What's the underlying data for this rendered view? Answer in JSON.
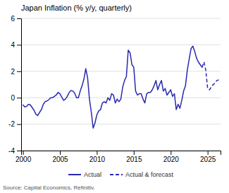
{
  "chart_data": {
    "type": "line",
    "title": "Japan Inflation (% y/y, quarterly)",
    "source": "Source: Capital Economics, Refinitiv.",
    "xlim": [
      1999.75,
      2026.75
    ],
    "xticks": [
      2000,
      2005,
      2010,
      2015,
      2020,
      2025
    ],
    "ylim": [
      -4,
      6
    ],
    "yticks": [
      -4,
      -2,
      0,
      2,
      4,
      6
    ],
    "grid": true,
    "legend": "bottom",
    "series": [
      {
        "name": "Actual",
        "color": "#2929b0",
        "line_style": "solid",
        "x": [
          2000.0,
          2000.25,
          2000.5,
          2000.75,
          2001.0,
          2001.25,
          2001.5,
          2001.75,
          2002.0,
          2002.25,
          2002.5,
          2002.75,
          2003.0,
          2003.25,
          2003.5,
          2003.75,
          2004.0,
          2004.25,
          2004.5,
          2004.75,
          2005.0,
          2005.25,
          2005.5,
          2005.75,
          2006.0,
          2006.25,
          2006.5,
          2006.75,
          2007.0,
          2007.25,
          2007.5,
          2007.75,
          2008.0,
          2008.25,
          2008.5,
          2008.75,
          2009.0,
          2009.25,
          2009.5,
          2009.75,
          2010.0,
          2010.25,
          2010.5,
          2010.75,
          2011.0,
          2011.25,
          2011.5,
          2011.75,
          2012.0,
          2012.25,
          2012.5,
          2012.75,
          2013.0,
          2013.25,
          2013.5,
          2013.75,
          2014.0,
          2014.25,
          2014.5,
          2014.75,
          2015.0,
          2015.25,
          2015.5,
          2015.75,
          2016.0,
          2016.25,
          2016.5,
          2016.75,
          2017.0,
          2017.25,
          2017.5,
          2017.75,
          2018.0,
          2018.25,
          2018.5,
          2018.75,
          2019.0,
          2019.25,
          2019.5,
          2019.75,
          2020.0,
          2020.25,
          2020.5,
          2020.75,
          2021.0,
          2021.25,
          2021.5,
          2021.75,
          2022.0,
          2022.25,
          2022.5,
          2022.75,
          2023.0,
          2023.25,
          2023.5,
          2023.75,
          2024.0,
          2024.25
        ],
        "values": [
          -0.55,
          -0.7,
          -0.65,
          -0.5,
          -0.55,
          -0.75,
          -0.95,
          -1.25,
          -1.35,
          -1.1,
          -0.9,
          -0.5,
          -0.3,
          -0.25,
          -0.15,
          0.0,
          0.0,
          0.1,
          0.2,
          0.4,
          0.3,
          0.05,
          -0.2,
          -0.1,
          0.1,
          0.4,
          0.55,
          0.5,
          0.35,
          0.0,
          0.0,
          0.5,
          0.9,
          1.4,
          2.2,
          1.5,
          -0.1,
          -1.1,
          -2.3,
          -1.9,
          -1.3,
          -1.0,
          -0.9,
          -0.4,
          -0.3,
          -0.4,
          0.0,
          -0.2,
          0.3,
          0.2,
          -0.4,
          -0.1,
          -0.3,
          -0.1,
          0.8,
          1.3,
          1.6,
          3.6,
          3.4,
          2.5,
          2.3,
          0.5,
          0.2,
          0.3,
          0.3,
          -0.1,
          -0.4,
          0.3,
          0.4,
          0.4,
          0.6,
          0.9,
          1.3,
          0.6,
          1.0,
          1.3,
          0.5,
          0.7,
          0.2,
          0.4,
          0.6,
          0.1,
          0.3,
          -0.9,
          -0.5,
          -0.8,
          -0.2,
          0.5,
          0.9,
          2.1,
          2.9,
          3.7,
          3.9,
          3.5,
          3.0,
          2.7,
          2.5,
          2.3
        ]
      },
      {
        "name": "Actual & forecast",
        "color": "#2929b0",
        "line_style": "dashed",
        "x": [
          2024.25,
          2024.5,
          2024.75,
          2025.0,
          2025.25,
          2025.5,
          2025.75,
          2026.0,
          2026.25,
          2026.5
        ],
        "values": [
          2.3,
          2.7,
          2.1,
          0.7,
          0.6,
          0.8,
          1.0,
          1.1,
          1.3,
          1.35
        ]
      }
    ]
  }
}
